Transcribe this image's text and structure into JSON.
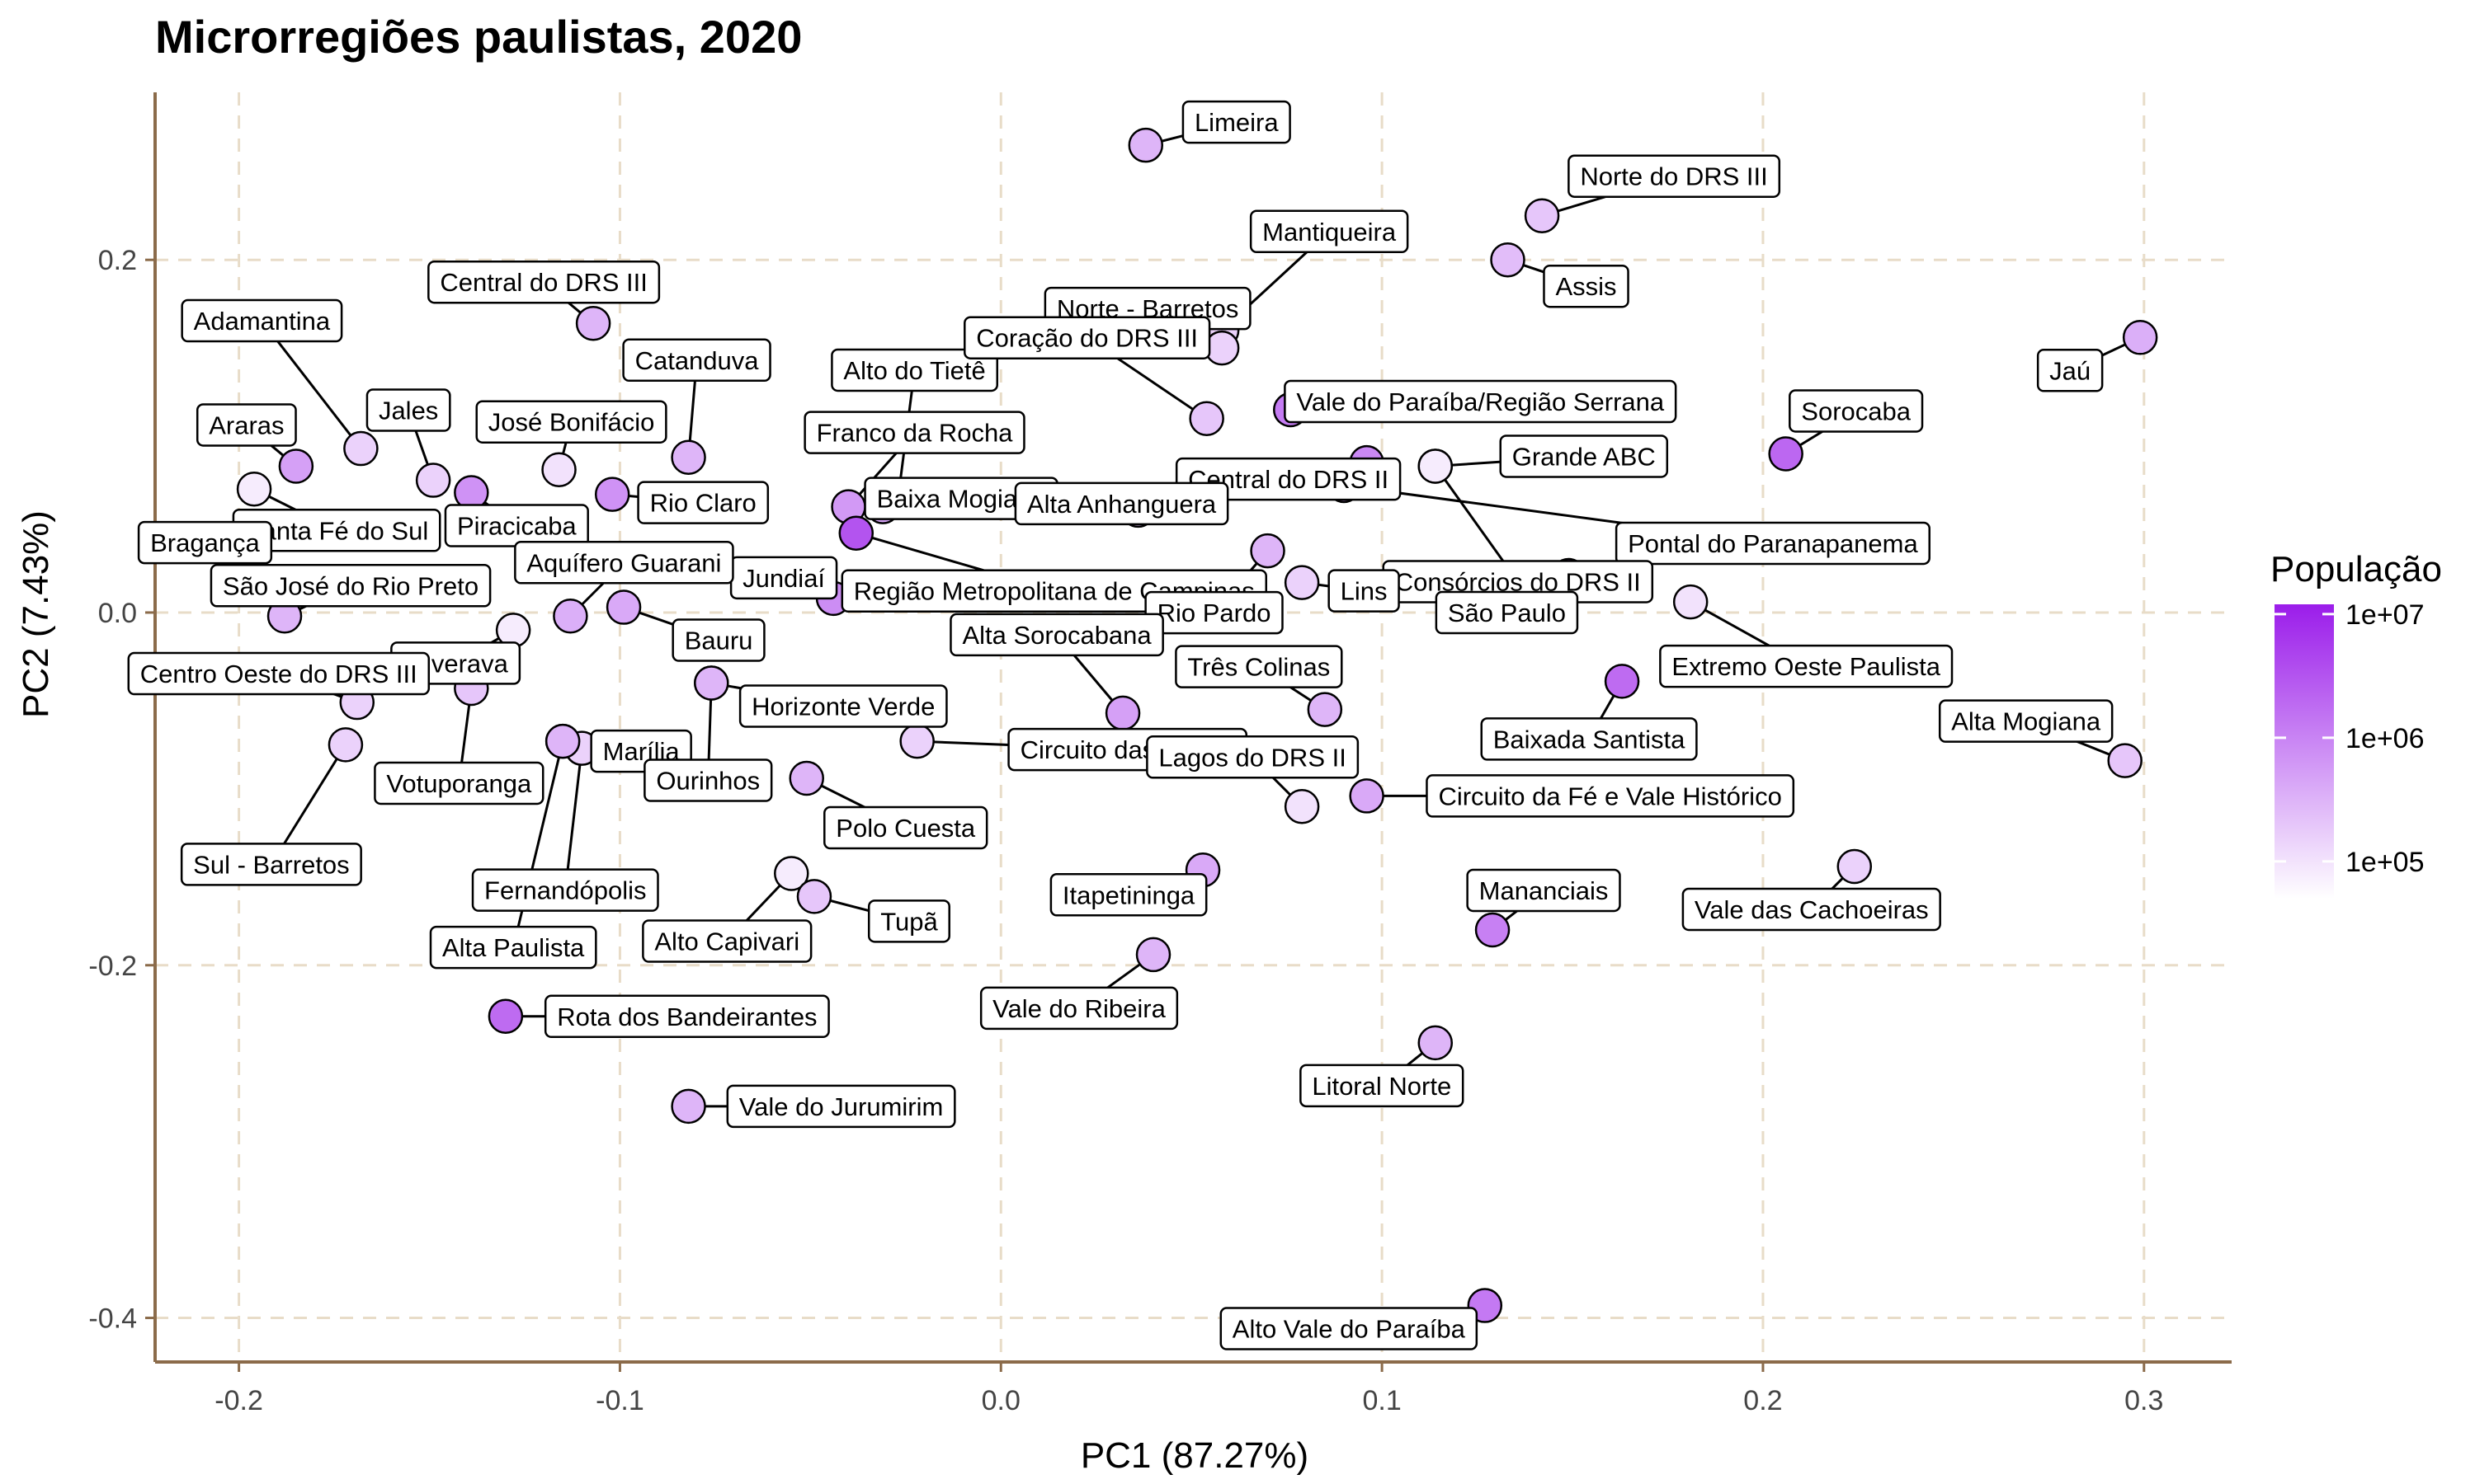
{
  "chart_data": {
    "type": "scatter",
    "title": "Microrregiões paulistas, 2020",
    "xlabel": "PC1 (87.27%)",
    "ylabel": "PC2 (7.43%)",
    "xlim": [
      -0.222,
      0.323
    ],
    "ylim": [
      -0.425,
      0.295
    ],
    "xticks": [
      -0.2,
      -0.1,
      0.0,
      0.1,
      0.2,
      0.3
    ],
    "xtick_labels": [
      "-0.2",
      "-0.1",
      "0.0",
      "0.1",
      "0.2",
      "0.3"
    ],
    "yticks": [
      -0.4,
      -0.2,
      0.0,
      0.2
    ],
    "ytick_labels": [
      "-0.4",
      "-0.2",
      "0.0",
      "0.2"
    ],
    "grid": true,
    "legend": {
      "title": "População",
      "position": "right",
      "type": "colorbar",
      "scale": "log10",
      "range": [
        50000,
        12000000
      ],
      "ticks": [
        100000,
        1000000,
        10000000
      ],
      "tick_labels": [
        "1e+05",
        "1e+06",
        "1e+07"
      ],
      "color_low": "#ffffff",
      "color_high": "#9b1dea"
    },
    "colors": {
      "axis": "#8b6b4a",
      "grid": "#e8dcc8",
      "point_stroke": "#000000"
    },
    "points": [
      {
        "label": "Limeira",
        "x": 0.038,
        "y": 0.265,
        "pop": 300000
      },
      {
        "label": "Norte do DRS III",
        "x": 0.142,
        "y": 0.225,
        "pop": 200000
      },
      {
        "label": "Mantiqueira",
        "x": 0.058,
        "y": 0.16,
        "pop": 150000
      },
      {
        "label": "Assis",
        "x": 0.133,
        "y": 0.2,
        "pop": 250000
      },
      {
        "label": "Jaú",
        "x": 0.299,
        "y": 0.156,
        "pop": 350000
      },
      {
        "label": "Central do DRS III",
        "x": -0.107,
        "y": 0.164,
        "pop": 300000
      },
      {
        "label": "Alto do Tietê",
        "x": -0.027,
        "y": 0.065,
        "pop": 500000
      },
      {
        "label": "Norte - Barretos",
        "x": 0.058,
        "y": 0.15,
        "pop": 150000
      },
      {
        "label": "Adamantina",
        "x": -0.168,
        "y": 0.093,
        "pop": 150000
      },
      {
        "label": "Catanduva",
        "x": -0.082,
        "y": 0.088,
        "pop": 300000
      },
      {
        "label": "Coração do DRS III",
        "x": 0.054,
        "y": 0.11,
        "pop": 200000
      },
      {
        "label": "Vale do Paraíba/Região Serrana",
        "x": 0.076,
        "y": 0.115,
        "pop": 1200000
      },
      {
        "label": "Jales",
        "x": -0.149,
        "y": 0.075,
        "pop": 150000
      },
      {
        "label": "Araras",
        "x": -0.185,
        "y": 0.083,
        "pop": 500000
      },
      {
        "label": "Sorocaba",
        "x": 0.206,
        "y": 0.09,
        "pop": 2000000
      },
      {
        "label": "José Bonifácio",
        "x": -0.116,
        "y": 0.081,
        "pop": 100000
      },
      {
        "label": "Franco da Rocha",
        "x": -0.04,
        "y": 0.06,
        "pop": 600000
      },
      {
        "label": "Central do DRS II",
        "x": 0.096,
        "y": 0.085,
        "pop": 900000
      },
      {
        "label": "Grande ABC",
        "x": 0.114,
        "y": 0.083,
        "pop": 2800000
      },
      {
        "label": "Pontal do Paranapanema",
        "x": 0.09,
        "y": 0.072,
        "pop": 600000
      },
      {
        "label": "Baixa Mogiana",
        "x": -0.031,
        "y": 0.06,
        "pop": 450000
      },
      {
        "label": "Alta Anhanguera",
        "x": 0.036,
        "y": 0.058,
        "pop": 200000
      },
      {
        "label": "Santa Fé do Sul",
        "x": -0.196,
        "y": 0.07,
        "pop": 80000
      },
      {
        "label": "Piracicaba",
        "x": -0.139,
        "y": 0.068,
        "pop": 700000
      },
      {
        "label": "Rio Claro",
        "x": -0.102,
        "y": 0.067,
        "pop": 700000
      },
      {
        "label": "Consórcios do DRS II",
        "x": 0.114,
        "y": 0.083,
        "pop": 80000
      },
      {
        "label": "Região Metropolitana de Campinas",
        "x": -0.038,
        "y": 0.045,
        "pop": 3200000
      },
      {
        "label": "Jundiaí",
        "x": -0.044,
        "y": 0.008,
        "pop": 800000
      },
      {
        "label": "Rio Pardo",
        "x": 0.07,
        "y": 0.035,
        "pop": 300000
      },
      {
        "label": "Lins",
        "x": 0.079,
        "y": 0.017,
        "pop": 150000
      },
      {
        "label": "São Paulo",
        "x": 0.149,
        "y": 0.021,
        "pop": 12000000
      },
      {
        "label": "Extremo Oeste Paulista",
        "x": 0.181,
        "y": 0.006,
        "pop": 100000
      },
      {
        "label": "Bragança",
        "x": -0.197,
        "y": 0.035,
        "pop": 450000
      },
      {
        "label": "São José do Rio Preto",
        "x": -0.188,
        "y": -0.002,
        "pop": 300000
      },
      {
        "label": "Aquífero Guarani",
        "x": -0.113,
        "y": -0.002,
        "pop": 350000
      },
      {
        "label": "Bauru",
        "x": -0.099,
        "y": 0.003,
        "pop": 400000
      },
      {
        "label": "Ituverava",
        "x": -0.128,
        "y": -0.01,
        "pop": 80000
      },
      {
        "label": "Centro Oeste do DRS III",
        "x": -0.169,
        "y": -0.051,
        "pop": 150000
      },
      {
        "label": "Votuporanga",
        "x": -0.139,
        "y": -0.043,
        "pop": 200000
      },
      {
        "label": "Marília",
        "x": -0.115,
        "y": -0.073,
        "pop": 300000
      },
      {
        "label": "Fernandópolis",
        "x": -0.11,
        "y": -0.077,
        "pop": 150000
      },
      {
        "label": "Horizonte Verde",
        "x": -0.076,
        "y": -0.04,
        "pop": 300000
      },
      {
        "label": "Alta Sorocabana",
        "x": 0.032,
        "y": -0.057,
        "pop": 500000
      },
      {
        "label": "Três Colinas",
        "x": 0.085,
        "y": -0.055,
        "pop": 300000
      },
      {
        "label": "Baixada Santista",
        "x": 0.163,
        "y": -0.039,
        "pop": 1800000
      },
      {
        "label": "Alta Mogiana",
        "x": 0.295,
        "y": -0.084,
        "pop": 200000
      },
      {
        "label": "Circuito das Águas",
        "x": -0.022,
        "y": -0.073,
        "pop": 150000
      },
      {
        "label": "Sul - Barretos",
        "x": -0.172,
        "y": -0.075,
        "pop": 150000
      },
      {
        "label": "Ourinhos",
        "x": -0.076,
        "y": -0.04,
        "pop": 300000
      },
      {
        "label": "Polo Cuesta",
        "x": -0.051,
        "y": -0.094,
        "pop": 300000
      },
      {
        "label": "Circuito da Fé e Vale Histórico",
        "x": 0.096,
        "y": -0.104,
        "pop": 400000
      },
      {
        "label": "Lagos do DRS II",
        "x": 0.079,
        "y": -0.11,
        "pop": 100000
      },
      {
        "label": "Alta Paulista",
        "x": -0.115,
        "y": -0.073,
        "pop": 300000
      },
      {
        "label": "Alto Capivari",
        "x": -0.055,
        "y": -0.148,
        "pop": 80000
      },
      {
        "label": "Tupã",
        "x": -0.049,
        "y": -0.161,
        "pop": 200000
      },
      {
        "label": "Itapetininga",
        "x": 0.053,
        "y": -0.146,
        "pop": 400000
      },
      {
        "label": "Vale das Cachoeiras",
        "x": 0.224,
        "y": -0.144,
        "pop": 150000
      },
      {
        "label": "Mananciais",
        "x": 0.129,
        "y": -0.18,
        "pop": 1100000
      },
      {
        "label": "Vale do Ribeira",
        "x": 0.04,
        "y": -0.194,
        "pop": 300000
      },
      {
        "label": "Rota dos Bandeirantes",
        "x": -0.13,
        "y": -0.229,
        "pop": 1800000
      },
      {
        "label": "Litoral Norte",
        "x": 0.114,
        "y": -0.244,
        "pop": 300000
      },
      {
        "label": "Vale do Jurumirim",
        "x": -0.082,
        "y": -0.28,
        "pop": 300000
      },
      {
        "label": "Alto Vale do Paraíba",
        "x": 0.127,
        "y": -0.393,
        "pop": 1300000
      }
    ]
  }
}
